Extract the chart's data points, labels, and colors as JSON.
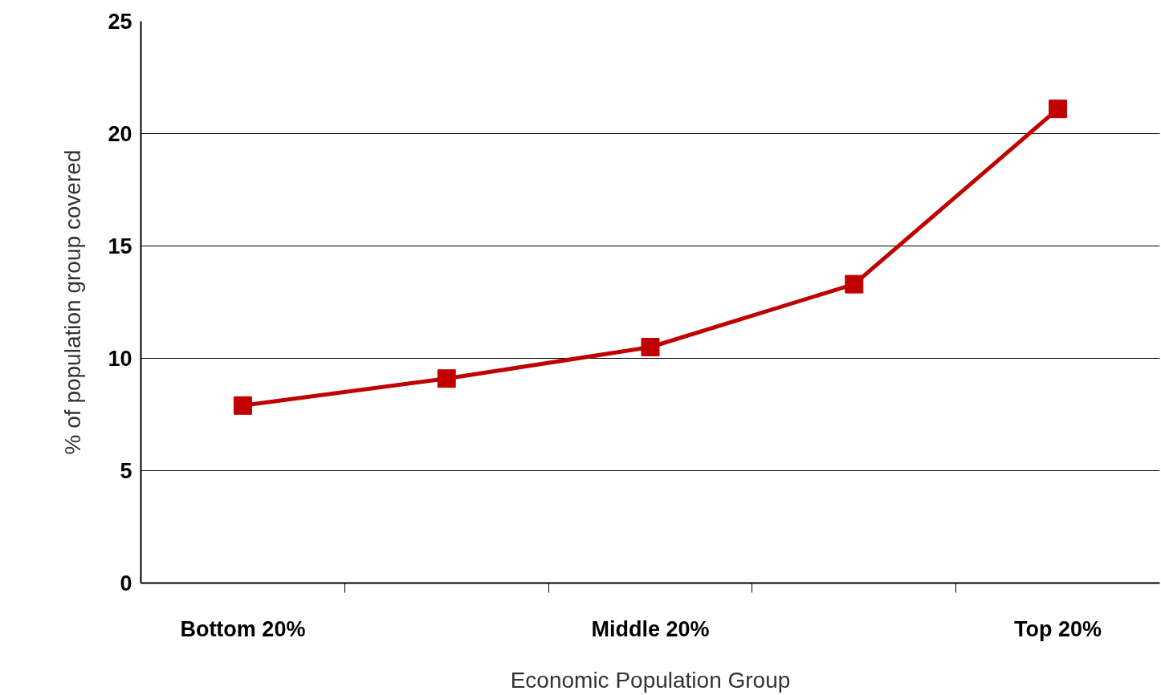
{
  "chart_data": {
    "type": "line",
    "xlabel": "Economic Population Group",
    "ylabel": "% of population group covered",
    "categories": [
      "Bottom 20%",
      null,
      "Middle 20%",
      null,
      "Top 20%"
    ],
    "series": [
      {
        "color": "#c00000",
        "values": [
          7.9,
          9.1,
          10.5,
          13.3,
          21.1
        ]
      }
    ],
    "ylim": [
      0,
      25
    ],
    "yticks": [
      0,
      5,
      10,
      15,
      20,
      25
    ],
    "grid": "y",
    "marker": "square",
    "line_style": "solid"
  }
}
